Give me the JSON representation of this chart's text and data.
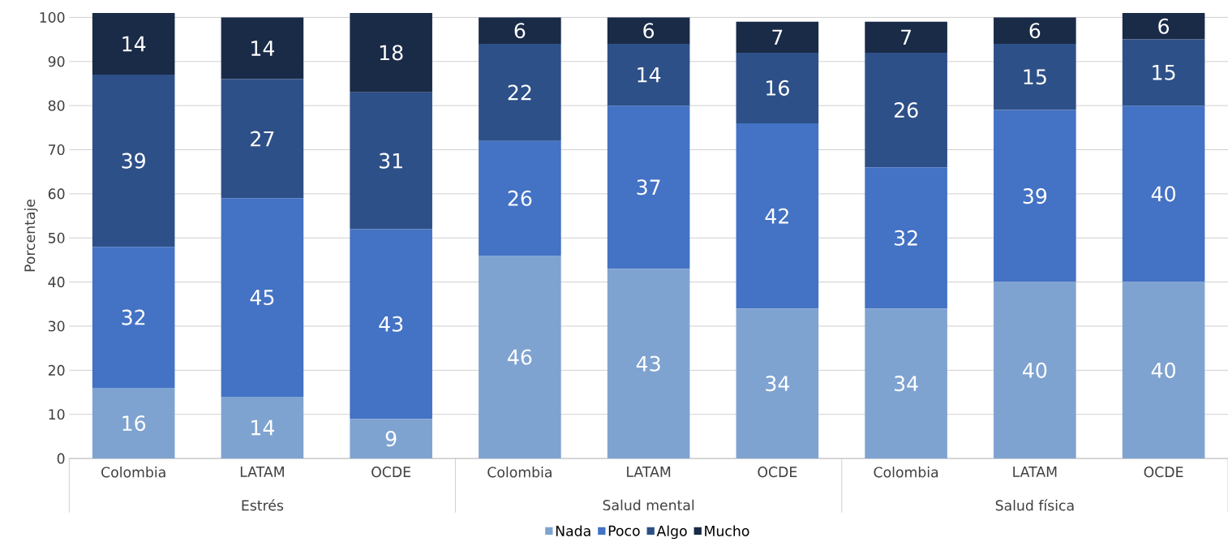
{
  "chart_data": {
    "type": "bar",
    "stacked": true,
    "ylabel": "Porcentaje",
    "categories": [
      "Colombia",
      "LATAM",
      "OCDE",
      "Colombia",
      "LATAM",
      "OCDE",
      "Colombia",
      "LATAM",
      "OCDE"
    ],
    "annotations": [
      "Estrés",
      "Salud mental",
      "Salud física"
    ],
    "series": [
      {
        "name": "Nada",
        "color": "#7fa3d0",
        "values": [
          16,
          14,
          9,
          46,
          43,
          34,
          34,
          40,
          40
        ]
      },
      {
        "name": "Poco",
        "color": "#4472c4",
        "values": [
          32,
          45,
          43,
          26,
          37,
          42,
          32,
          39,
          40
        ]
      },
      {
        "name": "Algo",
        "color": "#2e5088",
        "values": [
          39,
          27,
          31,
          22,
          14,
          16,
          26,
          15,
          15
        ]
      },
      {
        "name": "Mucho",
        "color": "#1a2b48",
        "values": [
          14,
          14,
          18,
          6,
          6,
          7,
          7,
          6,
          6
        ]
      }
    ],
    "ylim": [
      0,
      101
    ],
    "yticks": [
      0,
      10,
      20,
      30,
      40,
      50,
      60,
      70,
      80,
      90,
      100
    ],
    "grid": "y",
    "legend": "bottom",
    "data_labels": true
  }
}
